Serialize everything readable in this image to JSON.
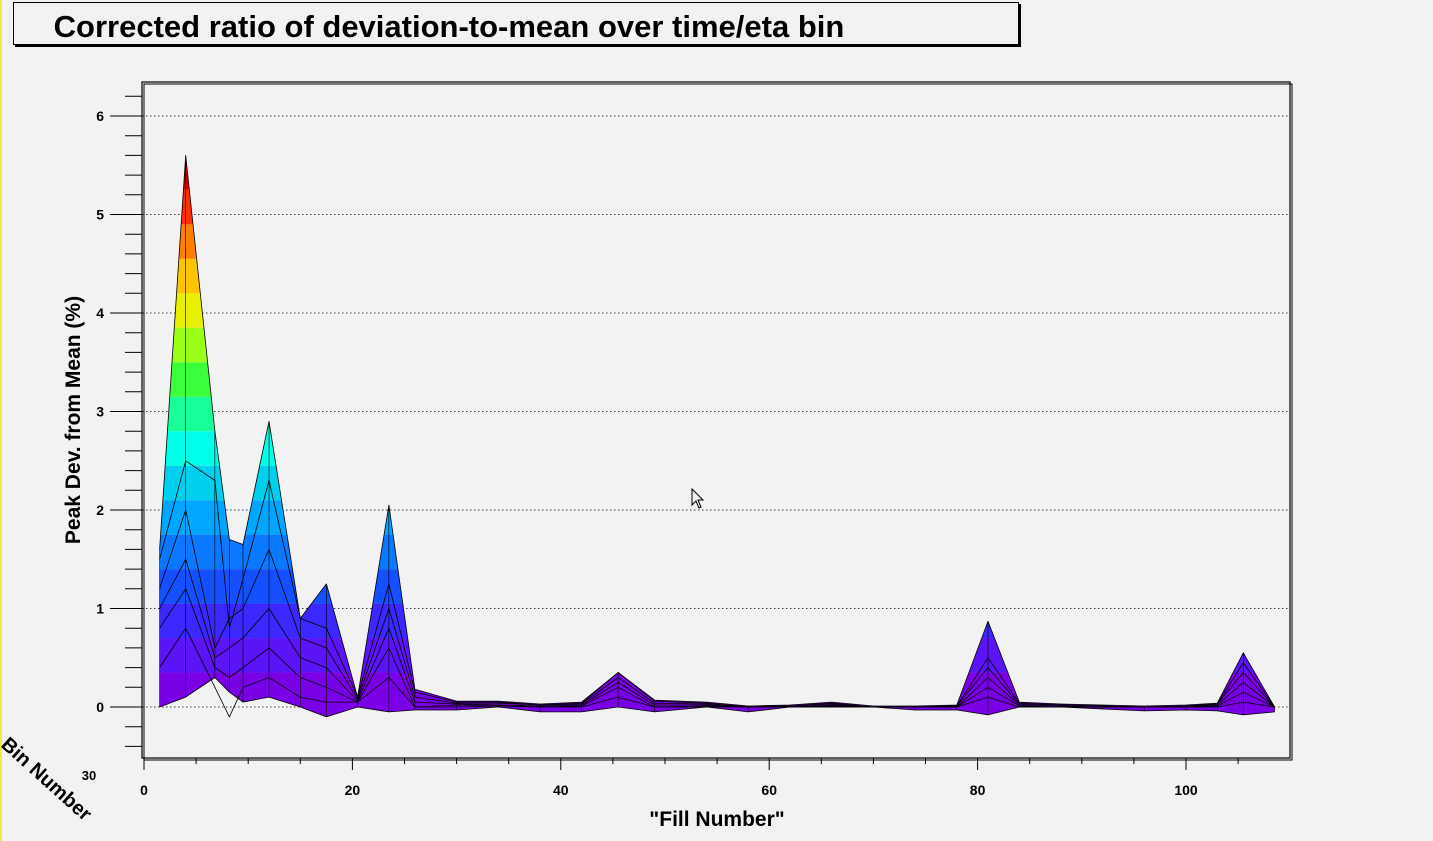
{
  "title": "Corrected ratio of deviation-to-mean over time/eta bin",
  "chart_data": {
    "type": "area",
    "title": "Corrected ratio of deviation-to-mean over time/eta bin",
    "xlabel": "\"Fill Number\"",
    "ylabel": "Peak Dev. from Mean (%)",
    "zlabel": "Bin Number",
    "z_tick_label": "30",
    "xlim": [
      0,
      110
    ],
    "ylim": [
      -0.5,
      6.3
    ],
    "x_ticks": [
      0,
      20,
      40,
      60,
      80,
      100
    ],
    "y_ticks": [
      0,
      1,
      2,
      3,
      4,
      5,
      6
    ],
    "grid": true,
    "colormap": [
      "#7a00e6",
      "#5a14f5",
      "#3c28ff",
      "#1450ff",
      "#0a78ff",
      "#00a6ff",
      "#00d0ee",
      "#00ffe6",
      "#18ff9a",
      "#3cff3c",
      "#9cff1a",
      "#e6f000",
      "#ffc400",
      "#ff8000",
      "#ff3000",
      "#d20000"
    ],
    "x": [
      1.5,
      4,
      6.8,
      8.2,
      9.5,
      12,
      15,
      17.5,
      20.5,
      23.5,
      26,
      30,
      34,
      38,
      42,
      45.5,
      49,
      54,
      58,
      62,
      66,
      70,
      74,
      78,
      81,
      84,
      88,
      92,
      96,
      100,
      103,
      105.5,
      108.5
    ],
    "series": [
      {
        "values": [
          0.0,
          0.1,
          0.3,
          0.15,
          0.05,
          0.1,
          0.0,
          -0.1,
          0.0,
          -0.05,
          -0.03,
          -0.03,
          0.0,
          -0.05,
          -0.05,
          0.0,
          -0.05,
          0.0,
          -0.05,
          0.0,
          0.0,
          0.0,
          -0.03,
          -0.03,
          -0.08,
          0.0,
          0.0,
          -0.02,
          -0.04,
          -0.03,
          -0.04,
          -0.08,
          -0.05
        ]
      },
      {
        "values": [
          0.4,
          0.8,
          0.2,
          -0.1,
          0.2,
          0.3,
          0.1,
          0.05,
          0.05,
          0.3,
          0.0,
          0.0,
          0.01,
          0.0,
          0.0,
          0.1,
          0.0,
          0.0,
          0.0,
          0.0,
          0.0,
          0.0,
          0.0,
          0.0,
          0.1,
          0.0,
          0.0,
          0.0,
          0.0,
          0.0,
          0.0,
          0.05,
          0.0
        ]
      },
      {
        "values": [
          0.8,
          1.2,
          0.4,
          0.3,
          0.4,
          0.6,
          0.3,
          0.2,
          0.05,
          0.6,
          0.0,
          0.02,
          0.01,
          0.0,
          0.01,
          0.2,
          0.0,
          0.01,
          0.0,
          0.0,
          0.01,
          0.0,
          0.0,
          0.0,
          0.2,
          0.01,
          0.0,
          0.0,
          0.0,
          0.0,
          0.01,
          0.15,
          0.0
        ]
      },
      {
        "values": [
          1.0,
          1.5,
          0.5,
          0.6,
          0.7,
          1.0,
          0.5,
          0.4,
          0.06,
          0.8,
          0.05,
          0.03,
          0.02,
          0.01,
          0.02,
          0.25,
          0.02,
          0.02,
          0.0,
          0.0,
          0.02,
          0.0,
          0.0,
          0.0,
          0.3,
          0.02,
          0.01,
          0.0,
          0.0,
          0.0,
          0.02,
          0.25,
          0.0
        ]
      },
      {
        "values": [
          1.2,
          2.0,
          0.6,
          0.9,
          1.0,
          1.6,
          0.7,
          0.6,
          0.08,
          1.0,
          0.1,
          0.04,
          0.04,
          0.02,
          0.03,
          0.3,
          0.04,
          0.03,
          0.0,
          0.01,
          0.03,
          0.0,
          0.0,
          0.01,
          0.4,
          0.03,
          0.02,
          0.01,
          0.0,
          0.0,
          0.03,
          0.35,
          0.0
        ]
      },
      {
        "values": [
          1.5,
          2.5,
          2.3,
          0.8,
          1.3,
          2.3,
          0.9,
          0.8,
          0.1,
          1.25,
          0.15,
          0.05,
          0.05,
          0.02,
          0.04,
          0.35,
          0.06,
          0.04,
          0.0,
          0.01,
          0.04,
          0.0,
          0.0,
          0.01,
          0.5,
          0.04,
          0.02,
          0.01,
          0.0,
          0.01,
          0.03,
          0.45,
          0.0
        ]
      },
      {
        "values": [
          1.6,
          5.6,
          2.8,
          1.7,
          1.65,
          2.9,
          0.9,
          1.25,
          0.1,
          2.05,
          0.18,
          0.06,
          0.06,
          0.03,
          0.05,
          0.35,
          0.07,
          0.05,
          0.01,
          0.02,
          0.05,
          0.01,
          0.01,
          0.02,
          0.87,
          0.05,
          0.03,
          0.02,
          0.01,
          0.02,
          0.04,
          0.55,
          0.0
        ]
      }
    ]
  }
}
